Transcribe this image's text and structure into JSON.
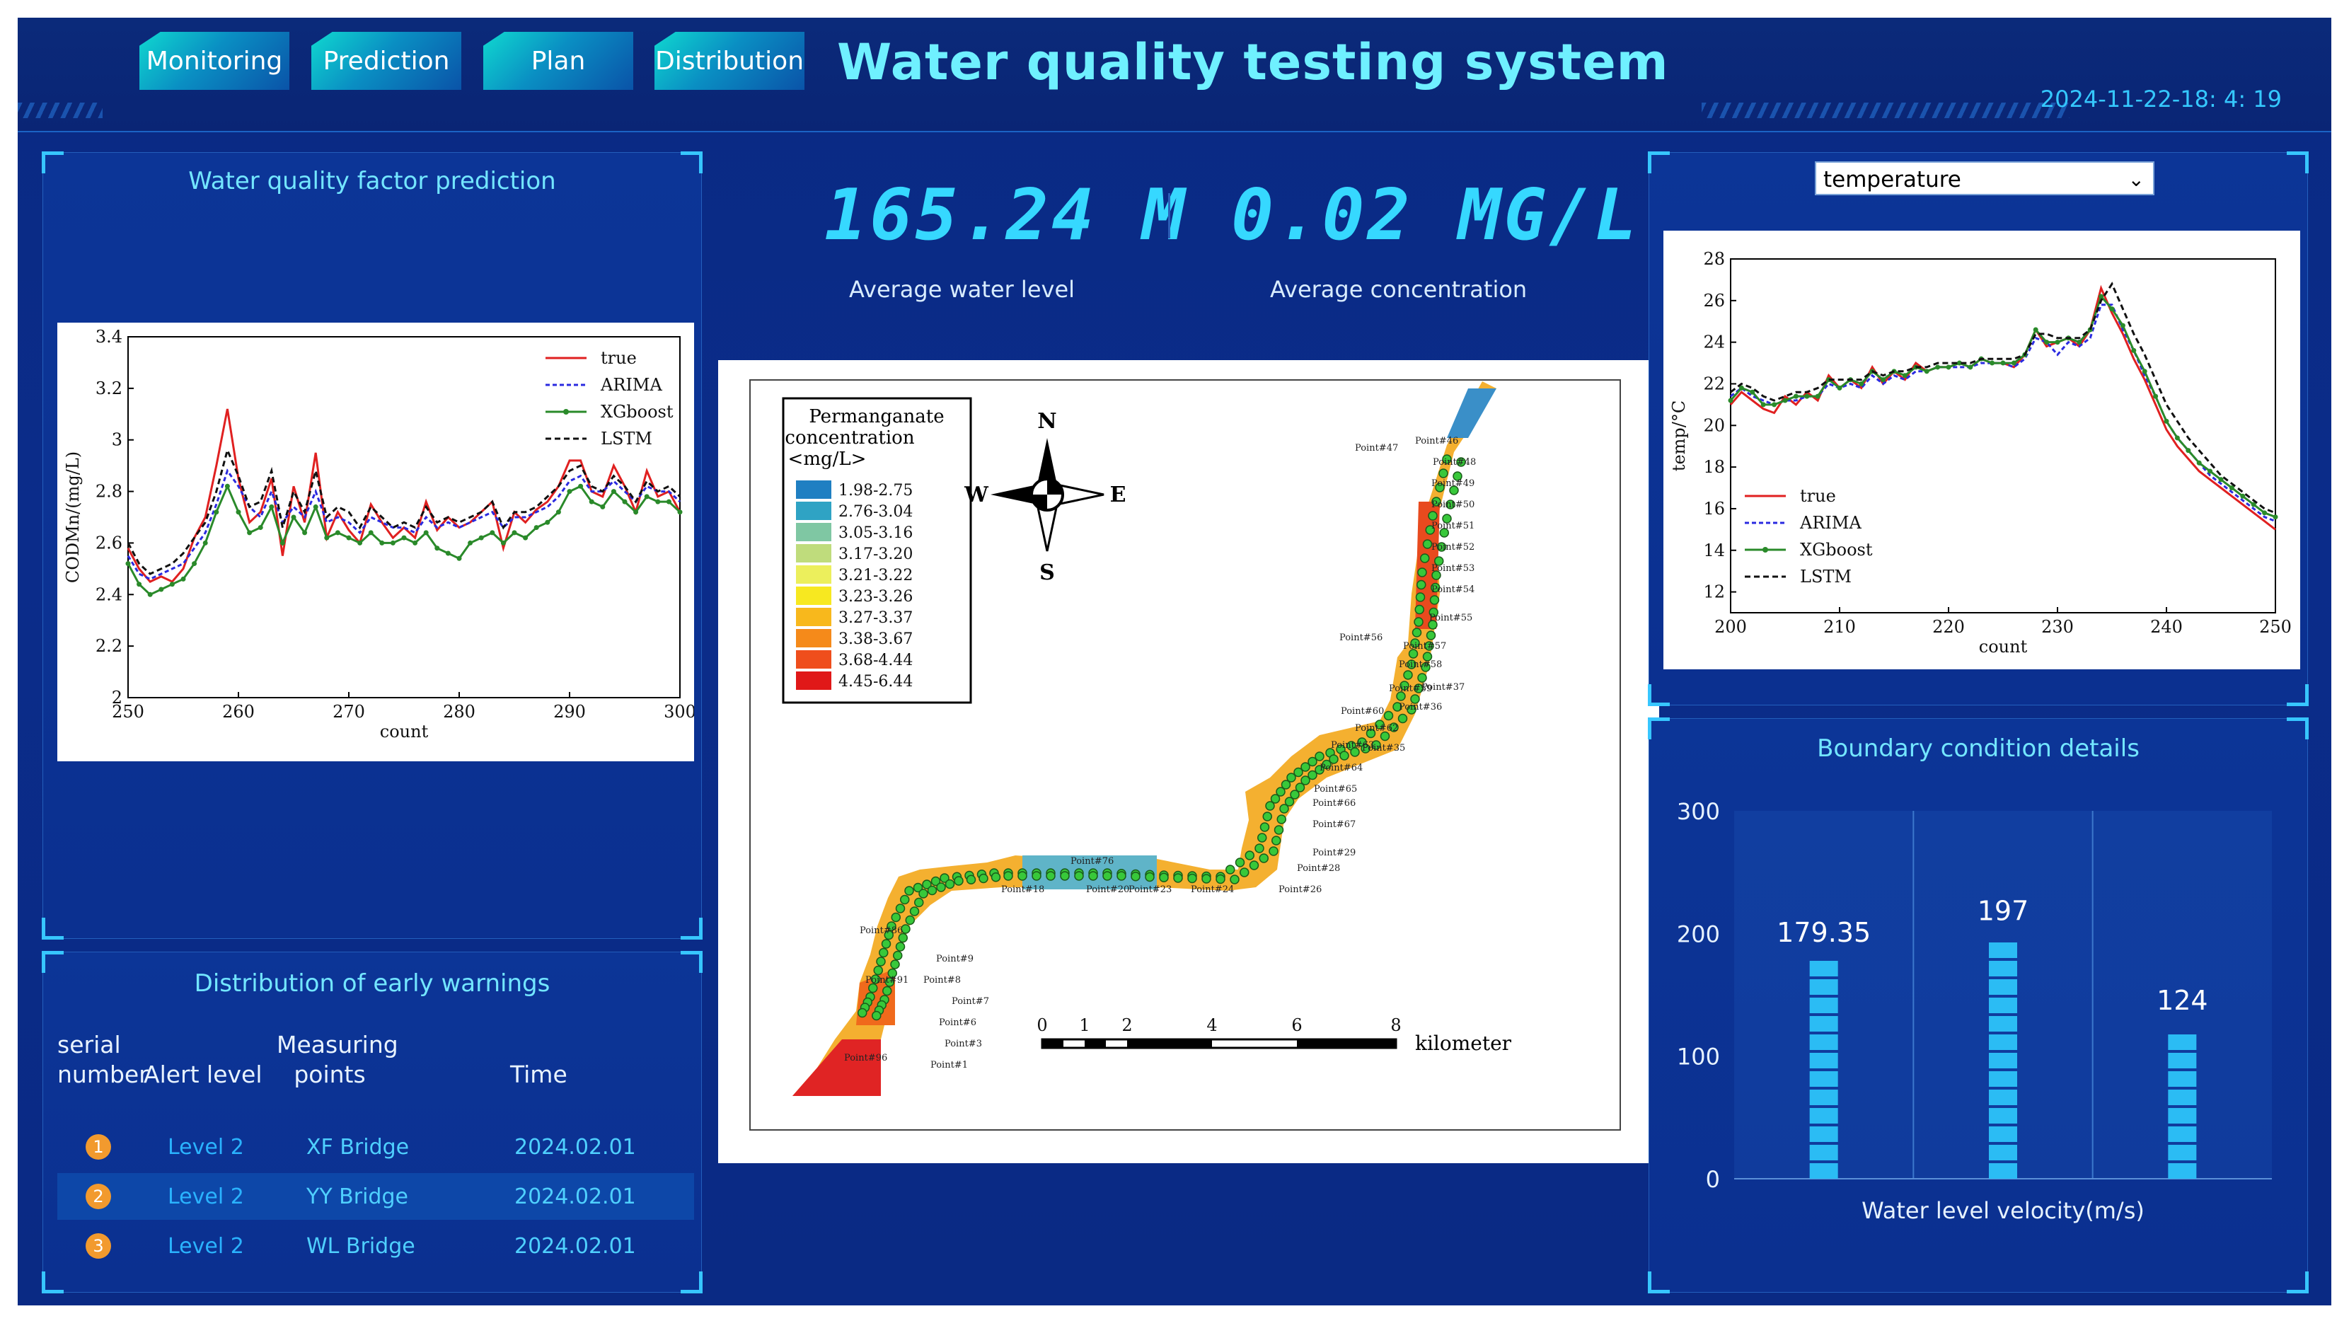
{
  "header": {
    "title": "Water quality testing system",
    "datetime": "2024-11-22-18: 4: 19",
    "nav": [
      "Monitoring",
      "Prediction",
      "Plan",
      "Distribution"
    ]
  },
  "stats": {
    "water_level_value": "165.24 M",
    "water_level_label": "Average water level",
    "concentration_value": "0.02 MG/L",
    "concentration_label": "Average concentration"
  },
  "prediction_panel": {
    "title": "Water quality factor prediction"
  },
  "warnings": {
    "title": "Distribution of early warnings",
    "headers": {
      "serial_1": "serial",
      "serial_2": "number",
      "alert": "Alert level",
      "points_1": "Measuring",
      "points_2": "points",
      "time": "Time"
    },
    "rows": [
      {
        "rank": "1",
        "level": "Level 2",
        "point": "XF Bridge",
        "time": "2024.02.01"
      },
      {
        "rank": "2",
        "level": "Level 2",
        "point": "YY Bridge",
        "time": "2024.02.01"
      },
      {
        "rank": "3",
        "level": "Level 2",
        "point": "WL Bridge",
        "time": "2024.02.01"
      }
    ]
  },
  "right_panel": {
    "select_value": "temperature"
  },
  "boundary_panel": {
    "title": "Boundary condition details"
  },
  "map": {
    "legend_title_1": "Permanganate",
    "legend_title_2": "concentration",
    "legend_title_3": "<mg/L>",
    "legend": [
      {
        "range": "1.98-2.75",
        "color": "#1f7fc2"
      },
      {
        "range": "2.76-3.04",
        "color": "#2fa3c4"
      },
      {
        "range": "3.05-3.16",
        "color": "#7fc7a3"
      },
      {
        "range": "3.17-3.20",
        "color": "#bfdc7c"
      },
      {
        "range": "3.21-3.22",
        "color": "#ecef5c"
      },
      {
        "range": "3.23-3.26",
        "color": "#f7e820"
      },
      {
        "range": "3.27-3.37",
        "color": "#f8b81c"
      },
      {
        "range": "3.38-3.67",
        "color": "#f58a1a"
      },
      {
        "range": "3.68-4.44",
        "color": "#ef4e1c"
      },
      {
        "range": "4.45-6.44",
        "color": "#e01818"
      }
    ],
    "compass": {
      "n": "N",
      "s": "S",
      "e": "E",
      "w": "W"
    },
    "scale_ticks": [
      "0",
      "1",
      "2",
      "4",
      "6",
      "8"
    ],
    "scale_unit": "kilometer",
    "point_labels": [
      "Point#47",
      "Point#46",
      "Point#48",
      "Point#49",
      "Point#50",
      "Point#51",
      "Point#52",
      "Point#53",
      "Point#54",
      "Point#55",
      "Point#56",
      "Point#57",
      "Point#58",
      "Point#59",
      "Point#60",
      "Point#36",
      "Point#37",
      "Point#62",
      "Point#63",
      "Point#35",
      "Point#64",
      "Point#65",
      "Point#66",
      "Point#67",
      "Point#29",
      "Point#28",
      "Point#26",
      "Point#24",
      "Point#23",
      "Point#20",
      "Point#18",
      "Point#76",
      "Point#86",
      "Point#9",
      "Point#8",
      "Point#7",
      "Point#6",
      "Point#3",
      "Point#1",
      "Point#96",
      "Point#91"
    ]
  },
  "chart_data": [
    {
      "type": "line",
      "xlabel": "count",
      "ylabel": "CODMn/(mg/L)",
      "xlim": [
        250,
        300
      ],
      "ylim": [
        2.0,
        3.4
      ],
      "xticks": [
        250,
        260,
        270,
        280,
        290,
        300
      ],
      "yticks": [
        2.0,
        2.2,
        2.4,
        2.6,
        2.8,
        3.0,
        3.2,
        3.4
      ],
      "legend_position": "top-right",
      "x": [
        250,
        251,
        252,
        253,
        254,
        255,
        256,
        257,
        258,
        259,
        260,
        261,
        262,
        263,
        264,
        265,
        266,
        267,
        268,
        269,
        270,
        271,
        272,
        273,
        274,
        275,
        276,
        277,
        278,
        279,
        280,
        281,
        282,
        283,
        284,
        285,
        286,
        287,
        288,
        289,
        290,
        291,
        292,
        293,
        294,
        295,
        296,
        297,
        298,
        299,
        300
      ],
      "series": [
        {
          "name": "true",
          "color": "#e02020",
          "dash": "",
          "marker": "",
          "values": [
            2.58,
            2.5,
            2.45,
            2.47,
            2.45,
            2.5,
            2.62,
            2.7,
            2.9,
            3.12,
            2.85,
            2.68,
            2.72,
            2.85,
            2.55,
            2.82,
            2.68,
            2.95,
            2.62,
            2.72,
            2.65,
            2.6,
            2.75,
            2.68,
            2.62,
            2.66,
            2.62,
            2.76,
            2.65,
            2.7,
            2.66,
            2.68,
            2.72,
            2.76,
            2.58,
            2.72,
            2.68,
            2.73,
            2.76,
            2.82,
            2.92,
            2.92,
            2.8,
            2.78,
            2.9,
            2.82,
            2.72,
            2.88,
            2.78,
            2.8,
            2.72
          ]
        },
        {
          "name": "ARIMA",
          "color": "#2a2ae0",
          "dash": "6,4",
          "marker": "",
          "values": [
            2.55,
            2.48,
            2.46,
            2.48,
            2.5,
            2.52,
            2.58,
            2.64,
            2.75,
            2.88,
            2.82,
            2.74,
            2.7,
            2.8,
            2.68,
            2.74,
            2.7,
            2.8,
            2.68,
            2.7,
            2.68,
            2.64,
            2.7,
            2.68,
            2.66,
            2.66,
            2.64,
            2.7,
            2.66,
            2.68,
            2.66,
            2.68,
            2.7,
            2.72,
            2.66,
            2.7,
            2.7,
            2.72,
            2.74,
            2.78,
            2.84,
            2.86,
            2.8,
            2.8,
            2.84,
            2.8,
            2.76,
            2.82,
            2.8,
            2.8,
            2.76
          ]
        },
        {
          "name": "XGboost",
          "color": "#2a8a2a",
          "dash": "",
          "marker": "circle",
          "values": [
            2.52,
            2.44,
            2.4,
            2.42,
            2.44,
            2.46,
            2.52,
            2.6,
            2.72,
            2.82,
            2.72,
            2.64,
            2.66,
            2.74,
            2.6,
            2.7,
            2.64,
            2.74,
            2.62,
            2.64,
            2.62,
            2.6,
            2.64,
            2.6,
            2.6,
            2.62,
            2.6,
            2.64,
            2.58,
            2.56,
            2.54,
            2.6,
            2.62,
            2.64,
            2.6,
            2.64,
            2.62,
            2.66,
            2.68,
            2.72,
            2.8,
            2.82,
            2.76,
            2.74,
            2.8,
            2.76,
            2.72,
            2.78,
            2.76,
            2.76,
            2.72
          ]
        },
        {
          "name": "LSTM",
          "color": "#111111",
          "dash": "8,5",
          "marker": "",
          "values": [
            2.6,
            2.52,
            2.48,
            2.5,
            2.52,
            2.56,
            2.62,
            2.68,
            2.8,
            2.96,
            2.86,
            2.74,
            2.76,
            2.88,
            2.66,
            2.8,
            2.72,
            2.88,
            2.7,
            2.74,
            2.72,
            2.66,
            2.74,
            2.7,
            2.66,
            2.68,
            2.66,
            2.74,
            2.68,
            2.7,
            2.68,
            2.7,
            2.72,
            2.76,
            2.66,
            2.72,
            2.72,
            2.74,
            2.78,
            2.82,
            2.88,
            2.9,
            2.82,
            2.8,
            2.86,
            2.82,
            2.76,
            2.84,
            2.8,
            2.82,
            2.78
          ]
        }
      ]
    },
    {
      "type": "line",
      "xlabel": "count",
      "ylabel": "temp/°C",
      "xlim": [
        200,
        250
      ],
      "ylim": [
        11,
        28
      ],
      "xticks": [
        200,
        210,
        220,
        230,
        240,
        250
      ],
      "yticks": [
        12,
        14,
        16,
        18,
        20,
        22,
        24,
        26,
        28
      ],
      "legend_position": "bottom-left",
      "x": [
        200,
        201,
        202,
        203,
        204,
        205,
        206,
        207,
        208,
        209,
        210,
        211,
        212,
        213,
        214,
        215,
        216,
        217,
        218,
        219,
        220,
        221,
        222,
        223,
        224,
        225,
        226,
        227,
        228,
        229,
        230,
        231,
        232,
        233,
        234,
        235,
        236,
        237,
        238,
        239,
        240,
        241,
        242,
        243,
        244,
        245,
        246,
        247,
        248,
        249,
        250
      ],
      "series": [
        {
          "name": "true",
          "color": "#e02020",
          "dash": "",
          "marker": "",
          "values": [
            21.0,
            21.6,
            21.2,
            20.8,
            20.6,
            21.4,
            21.0,
            21.6,
            21.2,
            22.4,
            21.8,
            22.2,
            21.8,
            22.8,
            22.0,
            22.6,
            22.2,
            23.0,
            22.6,
            22.8,
            22.8,
            23.0,
            22.8,
            23.2,
            23.0,
            23.0,
            22.8,
            23.4,
            24.6,
            23.8,
            24.0,
            24.2,
            23.8,
            24.6,
            26.6,
            25.4,
            24.4,
            23.2,
            22.2,
            21.0,
            19.8,
            19.0,
            18.4,
            17.8,
            17.4,
            17.0,
            16.6,
            16.2,
            15.8,
            15.4,
            15.0
          ]
        },
        {
          "name": "ARIMA",
          "color": "#2a2ae0",
          "dash": "6,4",
          "marker": "",
          "values": [
            21.4,
            21.8,
            21.4,
            21.2,
            21.0,
            21.2,
            21.2,
            21.4,
            21.4,
            22.0,
            21.8,
            22.0,
            21.8,
            22.4,
            22.0,
            22.4,
            22.2,
            22.6,
            22.6,
            22.8,
            22.8,
            22.8,
            22.8,
            23.0,
            23.0,
            23.0,
            22.8,
            23.2,
            24.2,
            24.0,
            23.4,
            24.0,
            23.8,
            24.2,
            25.8,
            25.8,
            24.6,
            23.6,
            22.4,
            21.4,
            20.2,
            19.4,
            18.8,
            18.2,
            17.6,
            17.2,
            16.8,
            16.4,
            16.0,
            15.6,
            15.4
          ]
        },
        {
          "name": "XGboost",
          "color": "#2a8a2a",
          "dash": "",
          "marker": "circle",
          "values": [
            21.2,
            21.8,
            21.6,
            21.0,
            21.0,
            21.2,
            21.4,
            21.4,
            21.4,
            22.2,
            21.8,
            22.2,
            22.0,
            22.6,
            22.2,
            22.6,
            22.4,
            22.8,
            22.6,
            22.8,
            22.8,
            23.0,
            22.8,
            23.2,
            23.0,
            23.0,
            23.0,
            23.4,
            24.6,
            24.0,
            24.0,
            24.2,
            24.0,
            24.6,
            26.2,
            25.6,
            24.8,
            23.6,
            22.6,
            21.4,
            20.2,
            19.4,
            18.8,
            18.2,
            17.8,
            17.4,
            17.0,
            16.6,
            16.2,
            15.8,
            15.6
          ]
        },
        {
          "name": "LSTM",
          "color": "#111111",
          "dash": "8,5",
          "marker": "",
          "values": [
            21.6,
            22.0,
            21.8,
            21.4,
            21.2,
            21.4,
            21.6,
            21.6,
            21.8,
            22.2,
            22.2,
            22.2,
            22.2,
            22.6,
            22.4,
            22.6,
            22.6,
            22.8,
            22.8,
            23.0,
            23.0,
            23.0,
            23.0,
            23.2,
            23.2,
            23.2,
            23.2,
            23.4,
            24.4,
            24.4,
            24.2,
            24.2,
            24.2,
            24.6,
            26.0,
            26.8,
            25.6,
            24.4,
            23.4,
            22.2,
            21.0,
            20.2,
            19.4,
            18.8,
            18.2,
            17.6,
            17.2,
            16.8,
            16.4,
            16.0,
            15.8
          ]
        }
      ]
    },
    {
      "type": "bar",
      "xlabel": "Water level velocity(m/s)",
      "ylim": [
        0,
        300
      ],
      "yticks": [
        0,
        100,
        200,
        300
      ],
      "categories": [
        "",
        "",
        ""
      ],
      "values": [
        179.35,
        197,
        124
      ],
      "value_labels": [
        "179.35",
        "197",
        "124"
      ],
      "grid": true
    }
  ]
}
